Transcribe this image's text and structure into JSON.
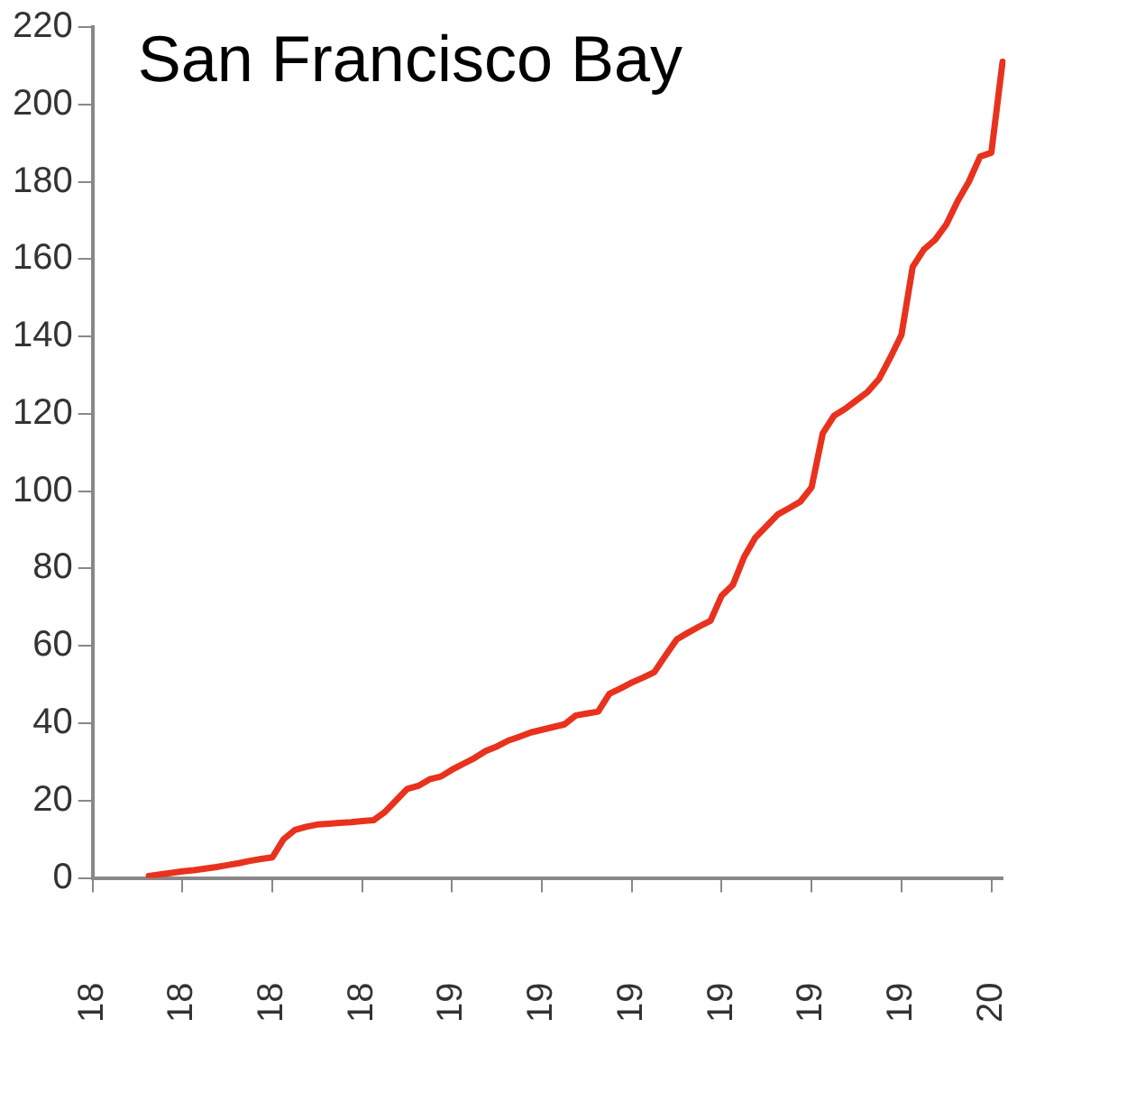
{
  "chart_data": {
    "type": "line",
    "title": "San Francisco Bay",
    "categories": [
      "18",
      null,
      null,
      null,
      null,
      null,
      null,
      null,
      "18",
      null,
      null,
      null,
      null,
      null,
      null,
      null,
      "18",
      null,
      null,
      null,
      null,
      null,
      null,
      null,
      "18",
      null,
      null,
      null,
      null,
      null,
      null,
      null,
      "19",
      null,
      null,
      null,
      null,
      null,
      null,
      null,
      "19",
      null,
      null,
      null,
      null,
      null,
      null,
      null,
      "19",
      null,
      null,
      null,
      null,
      null,
      null,
      null,
      "19",
      null,
      null,
      null,
      null,
      null,
      null,
      null,
      "19",
      null,
      null,
      null,
      null,
      null,
      null,
      null,
      "19",
      null,
      null,
      null,
      null,
      null,
      null,
      null,
      "20",
      null
    ],
    "series": [
      {
        "color": "#e8321e",
        "values": [
          null,
          null,
          null,
          null,
          null,
          0.5,
          0.9,
          1.3,
          1.7,
          2,
          2.4,
          2.8,
          3.3,
          3.8,
          4.4,
          4.9,
          5.3,
          10,
          12.4,
          13.2,
          13.8,
          14,
          14.2,
          14.4,
          14.7,
          14.9,
          17,
          20,
          23,
          23.8,
          25.5,
          26.2,
          28,
          29.5,
          31,
          32.8,
          34,
          35.5,
          36.5,
          37.6,
          38.3,
          39,
          39.7,
          42,
          42.5,
          43,
          47.6,
          49,
          50.5,
          51.8,
          53.2,
          57.5,
          61.7,
          63.4,
          65,
          66.5,
          73,
          75.8,
          83,
          88,
          91,
          94,
          95.6,
          97.3,
          101,
          115,
          119.5,
          121.3,
          123.5,
          125.7,
          129,
          134.5,
          140.4,
          158,
          162.5,
          165,
          169,
          175,
          180,
          186.5,
          187.5,
          211
        ]
      }
    ],
    "ylim": [
      0,
      220
    ],
    "yticks": [
      0,
      20,
      40,
      60,
      80,
      100,
      120,
      140,
      160,
      180,
      200,
      220
    ],
    "grid": false,
    "legend": false,
    "marker": "none",
    "line_style": "solid"
  }
}
